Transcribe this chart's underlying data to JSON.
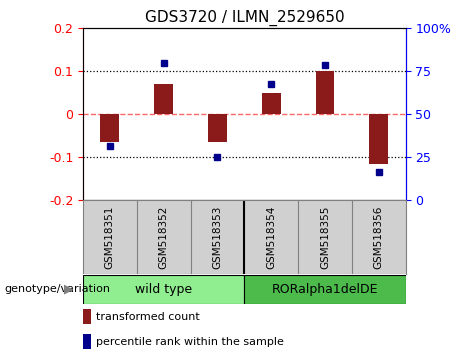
{
  "title": "GDS3720 / ILMN_2529650",
  "samples": [
    "GSM518351",
    "GSM518352",
    "GSM518353",
    "GSM518354",
    "GSM518355",
    "GSM518356"
  ],
  "red_bars": [
    -0.065,
    0.07,
    -0.065,
    0.05,
    0.1,
    -0.115
  ],
  "blue_dots_y": [
    -0.075,
    0.12,
    -0.1,
    0.07,
    0.115,
    -0.135
  ],
  "ylim": [
    -0.2,
    0.2
  ],
  "yticks_left": [
    -0.2,
    -0.1,
    0.0,
    0.1,
    0.2
  ],
  "yticks_right_labels": [
    "0",
    "25",
    "50",
    "75",
    "100%"
  ],
  "yticks_right_pos": [
    -0.2,
    -0.1,
    0.0,
    0.1,
    0.2
  ],
  "bar_color": "#8B1A1A",
  "dot_color": "#00008B",
  "zero_line_color": "#FF6666",
  "grid_color": "black",
  "sample_bg_color": "#d0d0d0",
  "group_wt_color": "#90EE90",
  "group_ror_color": "#4CBB4C",
  "legend_red_label": "transformed count",
  "legend_blue_label": "percentile rank within the sample",
  "group_header": "genotype/variation",
  "wt_label": "wild type",
  "ror_label": "RORalpha1delDE"
}
